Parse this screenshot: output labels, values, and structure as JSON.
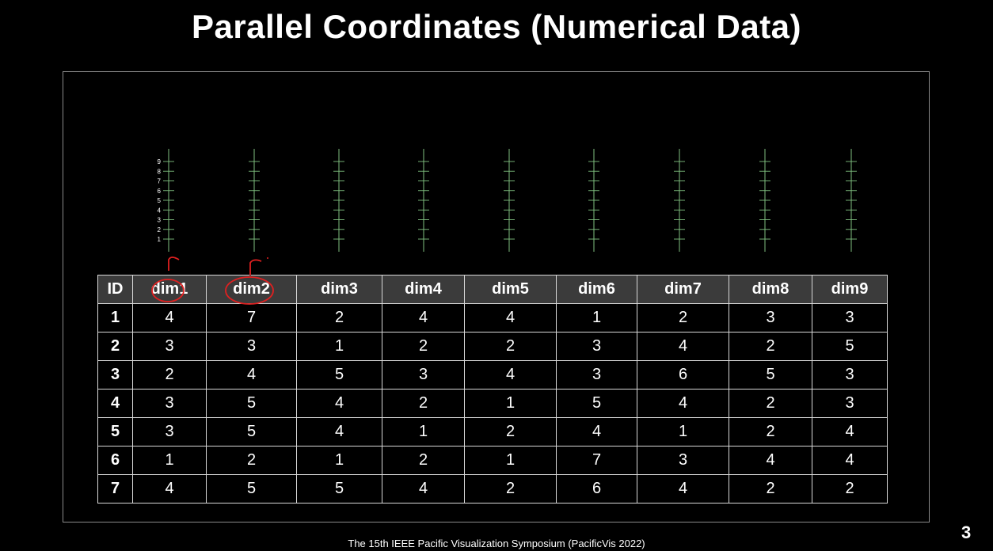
{
  "slide": {
    "title": "Parallel Coordinates (Numerical Data)",
    "footer": "The 15th IEEE Pacific Visualization Symposium (PacificVis 2022)",
    "page_number": "3"
  },
  "colors": {
    "background": "#000000",
    "axis_line": "#7fbf7f",
    "annotation": "#e02020",
    "table_header_bg": "#3b3b3b"
  },
  "chart_data": {
    "type": "table",
    "axes": [
      "dim1",
      "dim2",
      "dim3",
      "dim4",
      "dim5",
      "dim6",
      "dim7",
      "dim8",
      "dim9"
    ],
    "tick_labels": [
      "1",
      "2",
      "3",
      "4",
      "5",
      "6",
      "7",
      "8",
      "9"
    ],
    "ylim": [
      1,
      9
    ],
    "columns": [
      "ID",
      "dim1",
      "dim2",
      "dim3",
      "dim4",
      "dim5",
      "dim6",
      "dim7",
      "dim8",
      "dim9"
    ],
    "rows": [
      [
        "1",
        "4",
        "7",
        "2",
        "4",
        "4",
        "1",
        "2",
        "3",
        "3"
      ],
      [
        "2",
        "3",
        "3",
        "1",
        "2",
        "2",
        "3",
        "4",
        "2",
        "5"
      ],
      [
        "3",
        "2",
        "4",
        "5",
        "3",
        "4",
        "3",
        "6",
        "5",
        "3"
      ],
      [
        "4",
        "3",
        "5",
        "4",
        "2",
        "1",
        "5",
        "4",
        "2",
        "3"
      ],
      [
        "5",
        "3",
        "5",
        "4",
        "1",
        "2",
        "4",
        "1",
        "2",
        "4"
      ],
      [
        "6",
        "1",
        "2",
        "1",
        "2",
        "1",
        "7",
        "3",
        "4",
        "4"
      ],
      [
        "7",
        "4",
        "5",
        "5",
        "4",
        "2",
        "6",
        "4",
        "2",
        "2"
      ]
    ]
  }
}
